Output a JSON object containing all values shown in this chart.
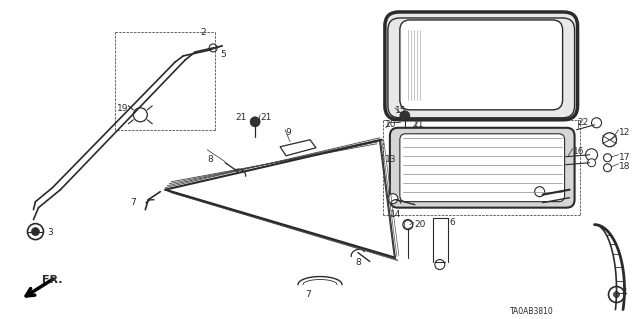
{
  "bg_color": "#ffffff",
  "line_color": "#2a2a2a",
  "diagram_code": "TA0AB3810",
  "fig_width": 6.4,
  "fig_height": 3.19,
  "dpi": 100
}
